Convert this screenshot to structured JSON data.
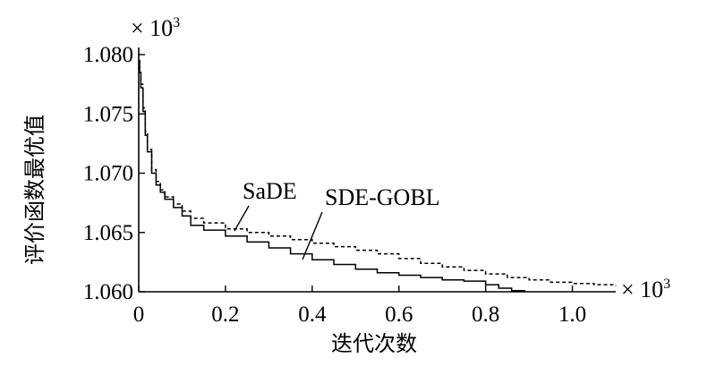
{
  "chart_data": {
    "type": "line",
    "xlabel": "迭代次数",
    "ylabel": "评价函数最优值",
    "x_multiplier_label": "× 10",
    "y_multiplier_label": "× 10",
    "multiplier_exponent": "3",
    "xlim": [
      0,
      1.1
    ],
    "ylim": [
      1.06,
      1.08
    ],
    "x_ticks": [
      "0",
      "0.2",
      "0.4",
      "0.6",
      "0.8",
      "1.0"
    ],
    "x_tick_values": [
      0,
      0.2,
      0.4,
      0.6,
      0.8,
      1.0
    ],
    "y_ticks": [
      "1.060",
      "1.065",
      "1.070",
      "1.075",
      "1.080"
    ],
    "y_tick_values": [
      1.06,
      1.065,
      1.07,
      1.075,
      1.08
    ],
    "grid": false,
    "legend": "annotations",
    "series": [
      {
        "name": "SaDE",
        "style": "dashed",
        "color": "#000000",
        "x": [
          0,
          0.002,
          0.005,
          0.01,
          0.015,
          0.02,
          0.03,
          0.04,
          0.05,
          0.06,
          0.08,
          0.1,
          0.12,
          0.15,
          0.2,
          0.25,
          0.3,
          0.35,
          0.4,
          0.45,
          0.5,
          0.55,
          0.6,
          0.65,
          0.7,
          0.75,
          0.8,
          0.85,
          0.9,
          0.95,
          1.0,
          1.05,
          1.1
        ],
        "y": [
          1.0795,
          1.0785,
          1.0775,
          1.0755,
          1.0735,
          1.072,
          1.0703,
          1.0693,
          1.0686,
          1.068,
          1.0674,
          1.0668,
          1.0662,
          1.0658,
          1.0653,
          1.065,
          1.0647,
          1.0644,
          1.0641,
          1.0638,
          1.0635,
          1.0632,
          1.0628,
          1.0624,
          1.0621,
          1.0618,
          1.0615,
          1.0612,
          1.061,
          1.0608,
          1.0607,
          1.0606,
          1.0605
        ]
      },
      {
        "name": "SDE-GOBL",
        "style": "solid",
        "color": "#000000",
        "x": [
          0,
          0.002,
          0.005,
          0.01,
          0.015,
          0.02,
          0.03,
          0.04,
          0.05,
          0.06,
          0.08,
          0.1,
          0.12,
          0.15,
          0.2,
          0.25,
          0.3,
          0.35,
          0.4,
          0.45,
          0.5,
          0.55,
          0.6,
          0.65,
          0.7,
          0.75,
          0.8,
          0.83,
          0.86,
          0.89
        ],
        "y": [
          1.0795,
          1.0785,
          1.0772,
          1.0752,
          1.0732,
          1.0718,
          1.07,
          1.069,
          1.0684,
          1.0678,
          1.0671,
          1.0664,
          1.0656,
          1.0652,
          1.0647,
          1.0642,
          1.0637,
          1.0632,
          1.0627,
          1.0623,
          1.0619,
          1.0616,
          1.0614,
          1.0612,
          1.061,
          1.0609,
          1.0606,
          1.0603,
          1.0601,
          1.06
        ]
      }
    ]
  }
}
